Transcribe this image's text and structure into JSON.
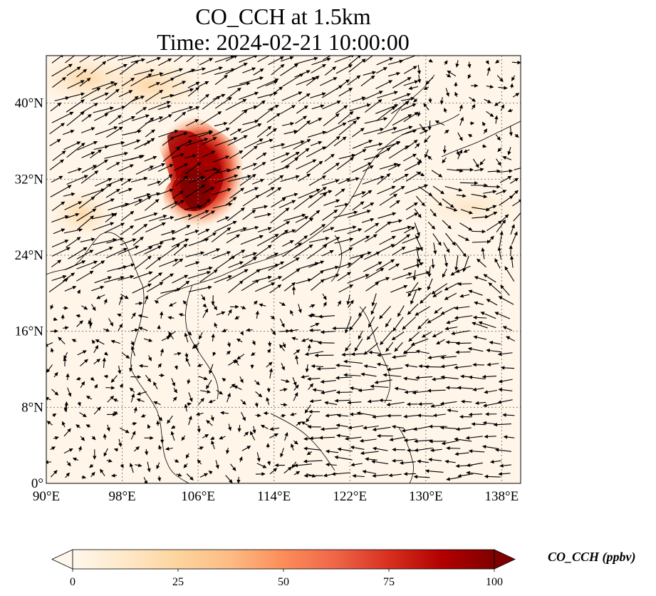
{
  "title": "CO_CCH at 1.5km",
  "subtitle": "Time: 2024-02-21 10:00:00",
  "map": {
    "lon_range": [
      90,
      140
    ],
    "lat_range": [
      0,
      45
    ],
    "x_ticks": [
      {
        "value": 90,
        "label": "90°E"
      },
      {
        "value": 98,
        "label": "98°E"
      },
      {
        "value": 106,
        "label": "106°E"
      },
      {
        "value": 114,
        "label": "114°E"
      },
      {
        "value": 122,
        "label": "122°E"
      },
      {
        "value": 130,
        "label": "130°E"
      },
      {
        "value": 138,
        "label": "138°E"
      }
    ],
    "y_ticks": [
      {
        "value": 0,
        "label": "0°"
      },
      {
        "value": 8,
        "label": "8°N"
      },
      {
        "value": 16,
        "label": "16°N"
      },
      {
        "value": 24,
        "label": "24°N"
      },
      {
        "value": 32,
        "label": "32°N"
      },
      {
        "value": 40,
        "label": "40°N"
      }
    ],
    "gridlines": "dotted",
    "field_variable": "CO_CCH",
    "vector_variable": "wind",
    "colormap": "OrRd",
    "plume": {
      "lon_range": [
        101,
        111
      ],
      "lat_range": [
        26,
        39
      ],
      "max_ppbv": 100
    }
  },
  "colorbar": {
    "min": 0,
    "max": 100,
    "ticks": [
      {
        "value": 0,
        "label": "0"
      },
      {
        "value": 25,
        "label": "25"
      },
      {
        "value": 50,
        "label": "50"
      },
      {
        "value": 75,
        "label": "75"
      },
      {
        "value": 100,
        "label": "100"
      }
    ],
    "extend": "both",
    "label": "CO_CCH (ppbv)",
    "colors": [
      "#fff7ec",
      "#fee8c8",
      "#fdd49e",
      "#fdbb84",
      "#fc8d59",
      "#ef6548",
      "#d7301f",
      "#b30000",
      "#7f0000"
    ]
  }
}
